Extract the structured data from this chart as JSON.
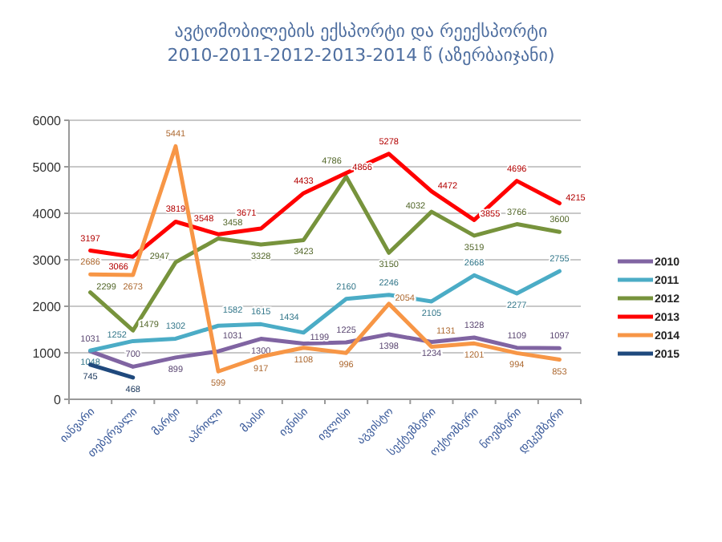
{
  "chart_data": {
    "type": "line",
    "title": "ავტომობილების  ექსპორტი და რეექსპორტი",
    "subtitle": "2010-2011-2012-2013-2014 წ (აზერბაიჯანი)",
    "categories": [
      "იანვარი",
      "თებერვალი",
      "მარტი",
      "აპრილი",
      "მაისი",
      "ივნისი",
      "ივლისი",
      "აგვისტო",
      "სექტემბერი",
      "ოქტომბერი",
      "ნოემბერი",
      "დეკემბერი"
    ],
    "series": [
      {
        "name": "2010",
        "color": "#8064a2",
        "values": [
          1031,
          700,
          899,
          1031,
          1300,
          1199,
          1225,
          1398,
          1234,
          1328,
          1109,
          1097
        ]
      },
      {
        "name": "2011",
        "color": "#4bacc6",
        "values": [
          1048,
          1252,
          1302,
          1582,
          1615,
          1434,
          2160,
          2246,
          2105,
          2668,
          2277,
          2755
        ]
      },
      {
        "name": "2012",
        "color": "#77933c",
        "values": [
          2299,
          1479,
          2947,
          3458,
          3328,
          3423,
          4786,
          3150,
          4032,
          3519,
          3766,
          3600
        ]
      },
      {
        "name": "2013",
        "color": "#ff0000",
        "values": [
          3197,
          3066,
          3819,
          3548,
          3671,
          4433,
          4866,
          5278,
          4472,
          3855,
          4696,
          4215
        ]
      },
      {
        "name": "2014",
        "color": "#f79646",
        "values": [
          2686,
          2673,
          5441,
          599,
          917,
          1108,
          996,
          2054,
          1131,
          1201,
          994,
          853
        ]
      },
      {
        "name": "2015",
        "color": "#1f497d",
        "values": [
          745,
          468,
          null,
          null,
          null,
          null,
          null,
          null,
          null,
          null,
          null,
          null
        ]
      }
    ],
    "ylim": [
      0,
      6000
    ],
    "yticks": [
      0,
      1000,
      2000,
      3000,
      4000,
      5000,
      6000
    ],
    "grid": "y",
    "legend": "right",
    "data_labels": true,
    "marker": "none",
    "line_style": "solid"
  }
}
